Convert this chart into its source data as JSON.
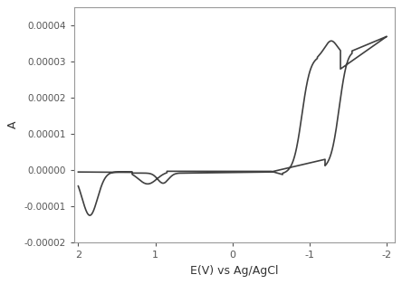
{
  "xlabel": "E(V) vs Ag/AgCl",
  "ylabel": "A",
  "xlim": [
    2.05,
    -2.1
  ],
  "ylim": [
    -2e-05,
    4.5e-05
  ],
  "xticks": [
    2,
    1,
    0,
    -1,
    -2
  ],
  "yticks": [
    -2e-05,
    -1e-05,
    0.0,
    1e-05,
    2e-05,
    3e-05,
    4e-05
  ],
  "ytick_labels": [
    "-0.00002",
    "-0.00001",
    "0.00000",
    "0.00001",
    "0.00002",
    "0.00003",
    "0.00004"
  ],
  "line_color": "#404040",
  "line_width": 1.2,
  "background_color": "#ffffff",
  "figsize": [
    4.44,
    3.14
  ],
  "dpi": 100
}
